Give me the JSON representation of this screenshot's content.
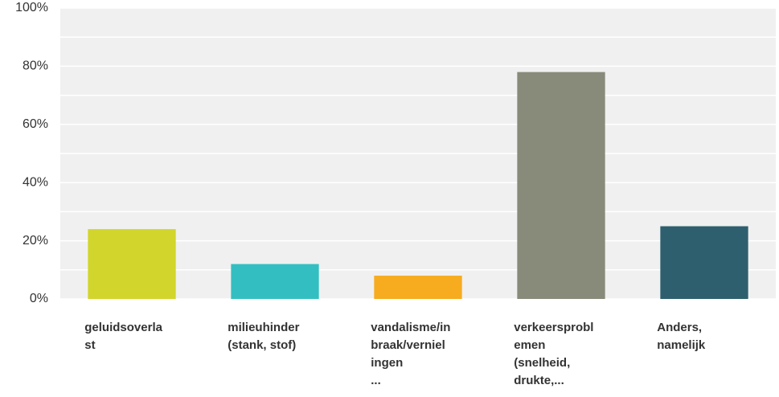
{
  "chart_data": {
    "type": "bar",
    "categories": [
      "geluidsoverla\nst",
      "milieuhinder\n(stank, stof)",
      "vandalisme/in\nbraak/verniel\ningen\n...",
      "verkeersprobl\nemen\n(snelheid,\ndrukte,...",
      "Anders,\nnamelijk"
    ],
    "values": [
      24,
      12,
      8,
      78,
      25
    ],
    "colors": [
      "#d2d52b",
      "#33bfc1",
      "#f7ab1e",
      "#888b7a",
      "#2e5f6e"
    ],
    "ylim": [
      0,
      100
    ],
    "yticks": [
      {
        "value": 0,
        "label": "0%"
      },
      {
        "value": 20,
        "label": "20%"
      },
      {
        "value": 40,
        "label": "40%"
      },
      {
        "value": 60,
        "label": "60%"
      },
      {
        "value": 80,
        "label": "80%"
      },
      {
        "value": 100,
        "label": "100%"
      }
    ],
    "minor_yticks": [
      10,
      30,
      50,
      70,
      90
    ],
    "grid": true
  }
}
